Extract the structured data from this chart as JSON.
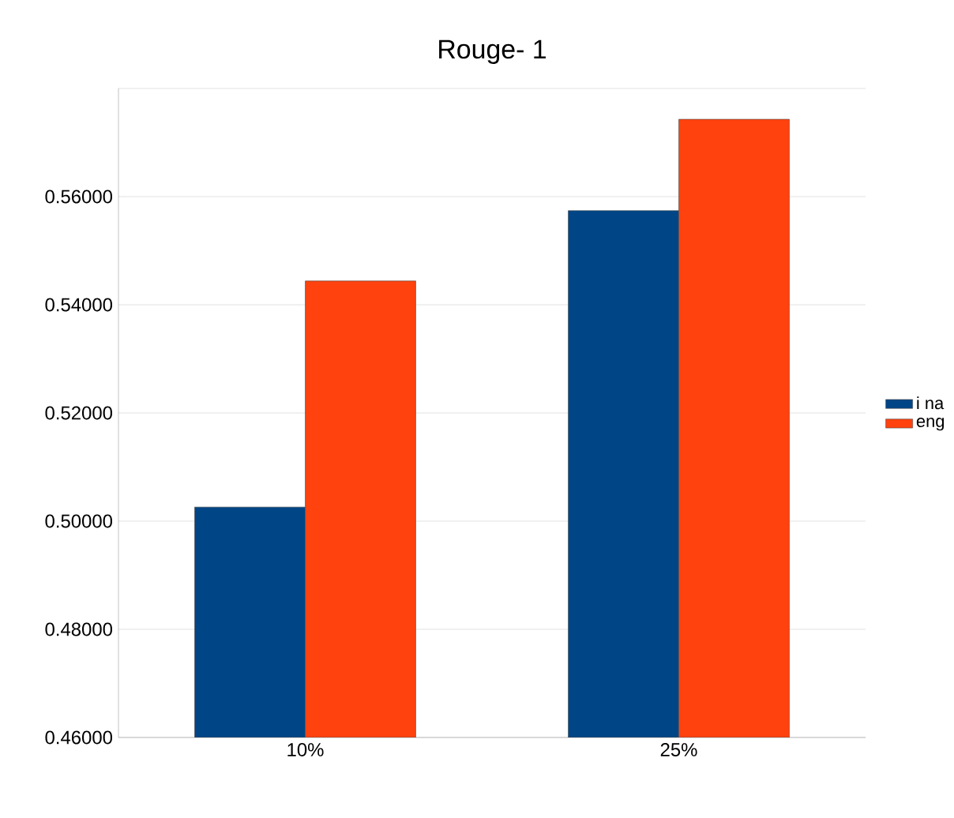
{
  "chart_data": {
    "type": "bar",
    "title": "Rouge- 1",
    "categories": [
      "10%",
      "25%"
    ],
    "series": [
      {
        "name": "i na",
        "color": "#004586",
        "values": [
          0.5026,
          0.5574
        ]
      },
      {
        "name": "eng",
        "color": "#ff420e",
        "values": [
          0.5444,
          0.5743
        ]
      }
    ],
    "ylim": [
      0.46,
      0.58
    ],
    "yticks": [
      {
        "value": 0.46,
        "label": "0.46000"
      },
      {
        "value": 0.48,
        "label": "0.48000"
      },
      {
        "value": 0.5,
        "label": "0.50000"
      },
      {
        "value": 0.52,
        "label": "0.52000"
      },
      {
        "value": 0.54,
        "label": "0.54000"
      },
      {
        "value": 0.56,
        "label": "0.56000"
      },
      {
        "value": 0.58,
        "label": null
      }
    ],
    "grid": "y",
    "legend": "right"
  }
}
